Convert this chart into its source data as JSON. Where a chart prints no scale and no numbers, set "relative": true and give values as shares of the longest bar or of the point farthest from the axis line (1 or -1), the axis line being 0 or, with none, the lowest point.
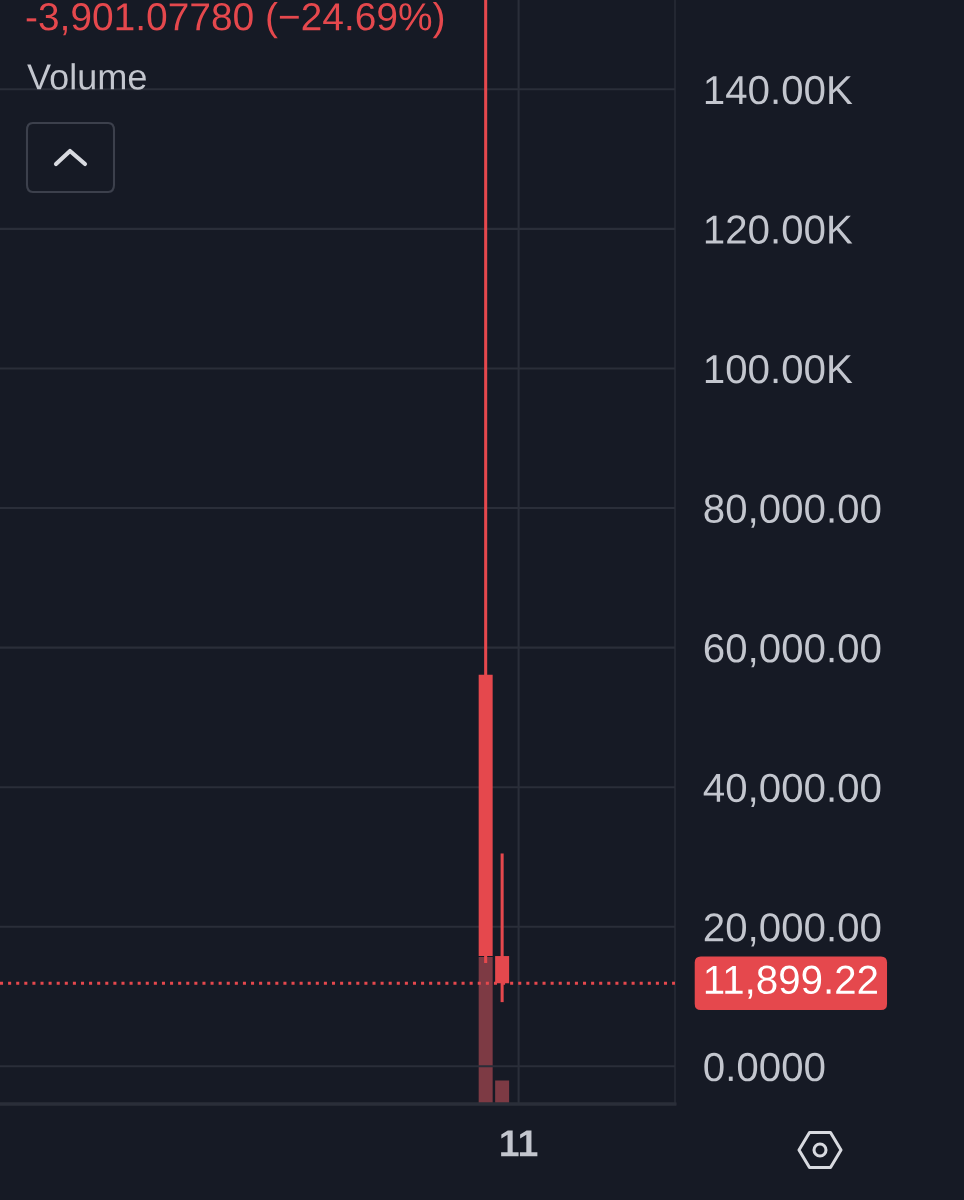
{
  "chart_data": [
    {
      "type": "candlestick",
      "title": "-3,901.07780 (−24.69%)",
      "categories": [
        null,
        null,
        null,
        null,
        null,
        null,
        null,
        null,
        null,
        null,
        null,
        null,
        null,
        null,
        null,
        null,
        null,
        null,
        null,
        null,
        null,
        null,
        null,
        null,
        null,
        null,
        null,
        null,
        null,
        null,
        null,
        "11",
        null,
        null,
        null,
        null,
        null,
        null,
        null,
        null,
        null
      ],
      "ylim": [
        -5400,
        152800
      ],
      "yticks": [
        {
          "value": 0,
          "label": "0.0000"
        },
        {
          "value": 20000,
          "label": "20,000.00"
        },
        {
          "value": 40000,
          "label": "40,000.00"
        },
        {
          "value": 60000,
          "label": "60,000.00"
        },
        {
          "value": 80000,
          "label": "80,000.00"
        },
        {
          "value": 100000,
          "label": "100.00K"
        },
        {
          "value": 120000,
          "label": "120.00K"
        },
        {
          "value": 140000,
          "label": "140.00K"
        }
      ],
      "grid": true,
      "series": [
        {
          "color": "#e5484d",
          "ohlc": [
            null,
            null,
            null,
            null,
            null,
            null,
            null,
            null,
            null,
            null,
            null,
            null,
            null,
            null,
            null,
            null,
            null,
            null,
            null,
            null,
            null,
            null,
            null,
            null,
            null,
            null,
            null,
            null,
            null,
            [
              56100,
              152800,
              14800,
              15800.3
            ],
            [
              15800.3,
              30500,
              9200,
              11899.22
            ],
            null,
            null,
            null,
            null,
            null,
            null,
            null,
            null,
            null,
            null
          ]
        }
      ],
      "ref_lines": [
        {
          "axis": "y",
          "value": 11899.22,
          "label": "11,899.22",
          "color": "#e5484d",
          "line_style": "dotted"
        }
      ]
    },
    {
      "type": "bar",
      "title": "Volume",
      "relative": true,
      "categories": [
        null,
        null,
        null,
        null,
        null,
        null,
        null,
        null,
        null,
        null,
        null,
        null,
        null,
        null,
        null,
        null,
        null,
        null,
        null,
        null,
        null,
        null,
        null,
        null,
        null,
        null,
        null,
        null,
        null,
        null,
        null,
        null,
        null,
        null,
        null,
        null,
        null,
        null,
        null,
        null,
        null
      ],
      "series": [
        {
          "color": "#7d3a44",
          "values": [
            null,
            null,
            null,
            null,
            null,
            null,
            null,
            null,
            null,
            null,
            null,
            null,
            null,
            null,
            null,
            null,
            null,
            null,
            null,
            null,
            null,
            null,
            null,
            null,
            null,
            null,
            null,
            null,
            null,
            1,
            0.16,
            null,
            null,
            null,
            null,
            null,
            null,
            null,
            null,
            null,
            null
          ]
        }
      ]
    }
  ]
}
